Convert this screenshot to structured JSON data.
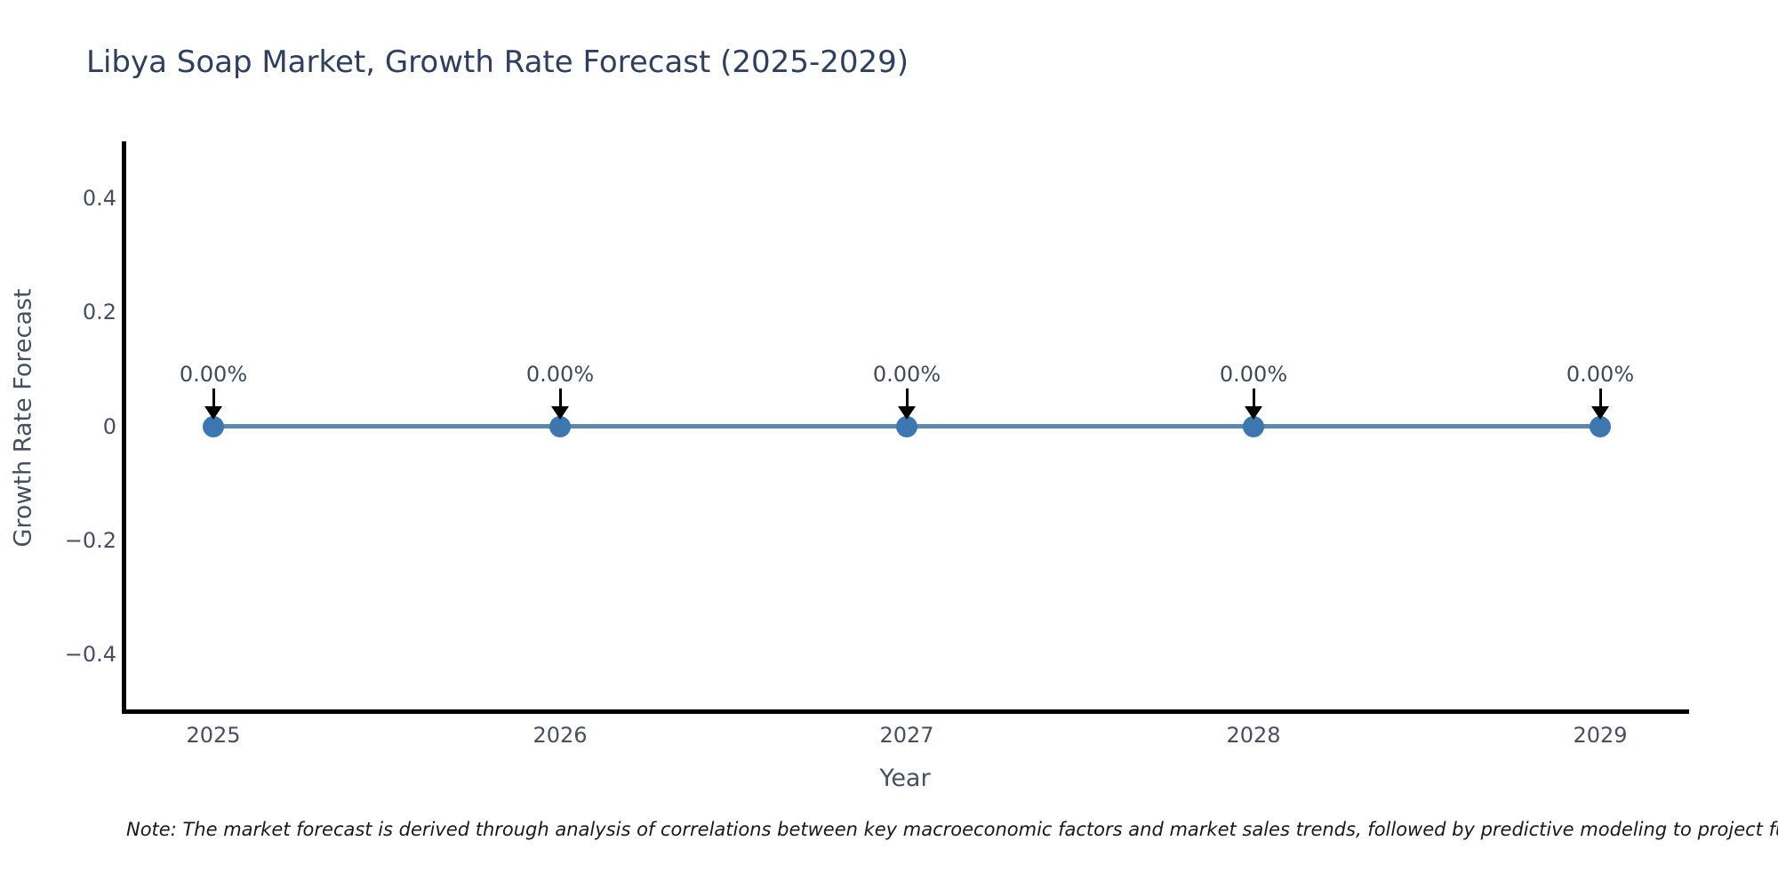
{
  "title": "Libya Soap Market, Growth Rate Forecast (2025-2029)",
  "note": "Note: The market forecast is derived through analysis of correlations between key macroeconomic factors and market sales trends, followed by predictive modeling to project future sales.",
  "colors": {
    "title_text": "#2e3f5f",
    "axis_text": "#46505e",
    "annotation_text": "#3f4a59",
    "line": "#5c88ad",
    "marker": "#3d77af",
    "arrow": "#000000",
    "spine": "#000000",
    "background": "#ffffff"
  },
  "chart_data": {
    "type": "line",
    "title": "Libya Soap Market, Growth Rate Forecast (2025-2029)",
    "xlabel": "Year",
    "ylabel": "Growth Rate Forecast",
    "categories": [
      "2025",
      "2026",
      "2027",
      "2028",
      "2029"
    ],
    "x": [
      2025,
      2026,
      2027,
      2028,
      2029
    ],
    "values": [
      0,
      0,
      0,
      0,
      0
    ],
    "point_labels": [
      "0.00%",
      "0.00%",
      "0.00%",
      "0.00%",
      "0.00%"
    ],
    "y_ticks": [
      "0.4",
      "0.2",
      "0",
      "−0.2",
      "−0.4"
    ],
    "ylim": [
      -0.5,
      0.5
    ],
    "grid": false,
    "legend_position": "none",
    "marker_style": "circle",
    "annotation_arrow": "down"
  }
}
